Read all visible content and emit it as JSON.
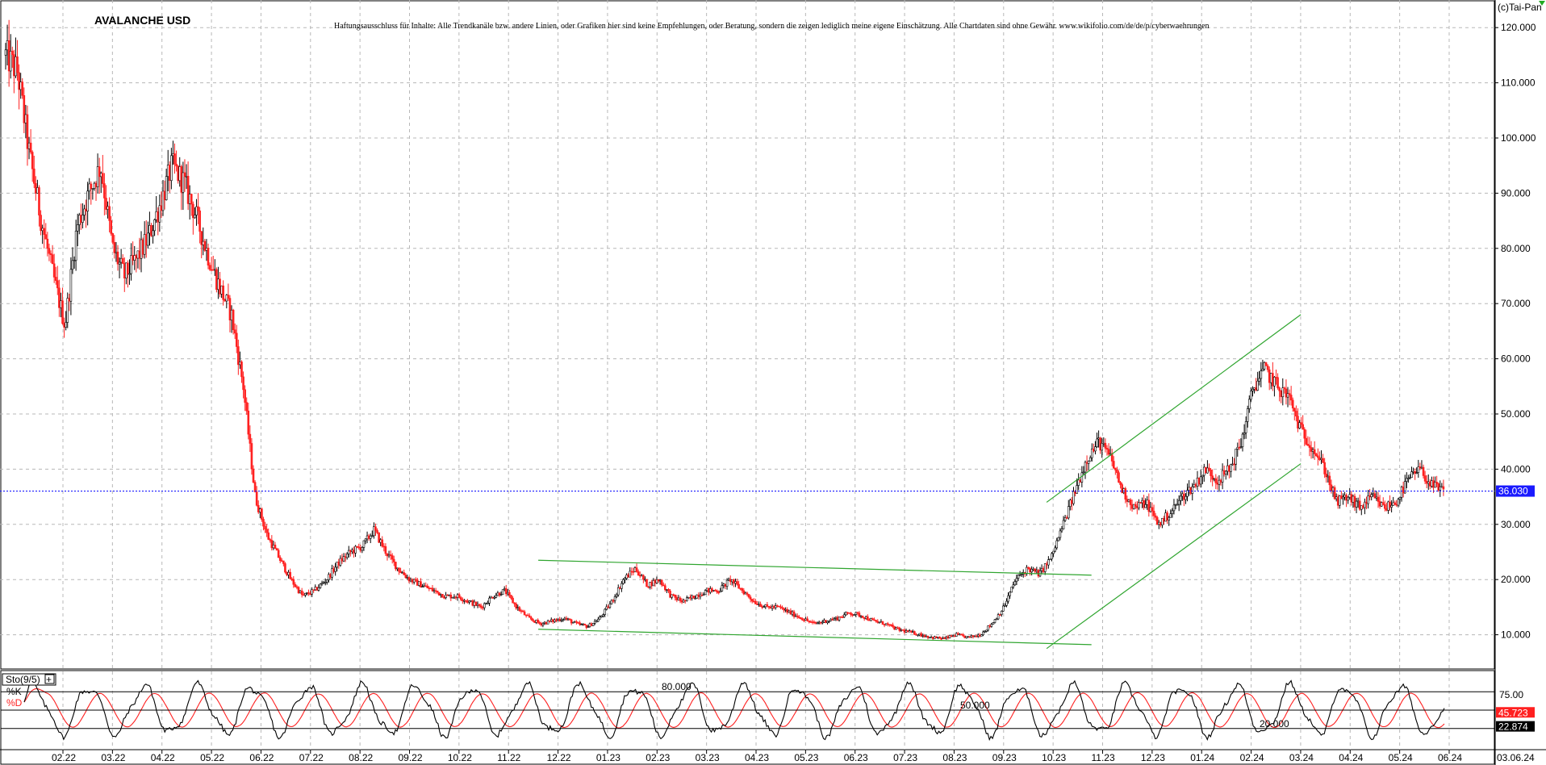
{
  "chart_data": [
    {
      "type": "candlestick",
      "title": "AVALANCHE USD",
      "subtitle": "Haftungsausschluss für Inhalte: Alle Trendkanäle bzw. andere Linien, oder Grafiken hier sind keine Empfehlungen, oder Beratung, sondern die zeigen lediglich meine eigene Einschätzung. Alle Chartdaten sind ohne Gewähr. www.wikifolio.com/de/de/p/cyberwaehrungen",
      "copyright": "(c)Tai-Pan",
      "x_ticks": [
        "02.22",
        "03.22",
        "04.22",
        "05.22",
        "06.22",
        "07.22",
        "08.22",
        "09.22",
        "10.22",
        "11.22",
        "12.22",
        "01.23",
        "02.23",
        "03.23",
        "04.23",
        "05.23",
        "06.23",
        "07.23",
        "08.23",
        "09.23",
        "10.23",
        "11.23",
        "12.23",
        "01.24",
        "02.24",
        "03.24",
        "04.24",
        "05.24",
        "06.24"
      ],
      "x_end_label": "03.06.24",
      "y_ticks": [
        "120.000",
        "110.000",
        "100.000",
        "90.000",
        "80.000",
        "70.000",
        "60.000",
        "50.000",
        "40.000",
        "30.000",
        "20.000",
        "10.000"
      ],
      "ylim": [
        3.8,
        125
      ],
      "last_price": "36.030",
      "last_price_value": 36.03,
      "colors": {
        "up": "#000000",
        "down": "#ff2020",
        "trendline": "#2fa52f",
        "last_price": "#1a1aff"
      },
      "close_path": [
        [
          0,
          115
        ],
        [
          1,
          112
        ],
        [
          2,
          97
        ],
        [
          3,
          85
        ],
        [
          4,
          75
        ],
        [
          5,
          66
        ],
        [
          6,
          84
        ],
        [
          7,
          90
        ],
        [
          8,
          95
        ],
        [
          9,
          80
        ],
        [
          10,
          75
        ],
        [
          11,
          78
        ],
        [
          12,
          82
        ],
        [
          13,
          88
        ],
        [
          14,
          95
        ],
        [
          15,
          92
        ],
        [
          16,
          86
        ],
        [
          17,
          79
        ],
        [
          18,
          73
        ],
        [
          19,
          68
        ],
        [
          20,
          55
        ],
        [
          21,
          35
        ],
        [
          22,
          28
        ],
        [
          23,
          24
        ],
        [
          24,
          20
        ],
        [
          25,
          17
        ],
        [
          26,
          18
        ],
        [
          27,
          20
        ],
        [
          28,
          23
        ],
        [
          29,
          25
        ],
        [
          30,
          26
        ],
        [
          31,
          29
        ],
        [
          32,
          25
        ],
        [
          33,
          22
        ],
        [
          34,
          20
        ],
        [
          35,
          19
        ],
        [
          36,
          18
        ],
        [
          37,
          17
        ],
        [
          38,
          17
        ],
        [
          39,
          16
        ],
        [
          40,
          15
        ],
        [
          41,
          17
        ],
        [
          42,
          18
        ],
        [
          43,
          15
        ],
        [
          44,
          13
        ],
        [
          45,
          12
        ],
        [
          46,
          12.5
        ],
        [
          47,
          13
        ],
        [
          48,
          12
        ],
        [
          49,
          11.5
        ],
        [
          50,
          13
        ],
        [
          51,
          16
        ],
        [
          52,
          20
        ],
        [
          53,
          22
        ],
        [
          54,
          19
        ],
        [
          55,
          20
        ],
        [
          56,
          17
        ],
        [
          57,
          16
        ],
        [
          58,
          17
        ],
        [
          59,
          18
        ],
        [
          60,
          18
        ],
        [
          61,
          20
        ],
        [
          62,
          18
        ],
        [
          63,
          16
        ],
        [
          64,
          15
        ],
        [
          65,
          15
        ],
        [
          66,
          14
        ],
        [
          67,
          13
        ],
        [
          68,
          12
        ],
        [
          69,
          12.5
        ],
        [
          70,
          13
        ],
        [
          71,
          14
        ],
        [
          72,
          13.5
        ],
        [
          73,
          12.5
        ],
        [
          74,
          12
        ],
        [
          75,
          11
        ],
        [
          76,
          10.5
        ],
        [
          77,
          10
        ],
        [
          78,
          9.5
        ],
        [
          79,
          9.3
        ],
        [
          80,
          10
        ],
        [
          81,
          9.5
        ],
        [
          82,
          10
        ],
        [
          83,
          12
        ],
        [
          84,
          15
        ],
        [
          85,
          20
        ],
        [
          86,
          22
        ],
        [
          87,
          21
        ],
        [
          88,
          24
        ],
        [
          89,
          30
        ],
        [
          90,
          36
        ],
        [
          91,
          42
        ],
        [
          92,
          45
        ],
        [
          93,
          42
        ],
        [
          94,
          36
        ],
        [
          95,
          33
        ],
        [
          96,
          34
        ],
        [
          97,
          30
        ],
        [
          98,
          32
        ],
        [
          99,
          35
        ],
        [
          100,
          37
        ],
        [
          101,
          40
        ],
        [
          102,
          38
        ],
        [
          103,
          40
        ],
        [
          104,
          45
        ],
        [
          105,
          55
        ],
        [
          106,
          58
        ],
        [
          107,
          55
        ],
        [
          108,
          53
        ],
        [
          109,
          47
        ],
        [
          110,
          44
        ],
        [
          111,
          40
        ],
        [
          112,
          34
        ],
        [
          113,
          35
        ],
        [
          114,
          33
        ],
        [
          115,
          35
        ],
        [
          116,
          33
        ],
        [
          117,
          34
        ],
        [
          118,
          38
        ],
        [
          119,
          40
        ],
        [
          120,
          37
        ],
        [
          121,
          36
        ]
      ],
      "close_path_x_range": [
        0,
        121
      ],
      "annotations": [
        {
          "name": "Downtrend channel upper",
          "from": [
            0.36,
            23.5
          ],
          "to": [
            0.73,
            20.8
          ]
        },
        {
          "name": "Downtrend channel lower",
          "from": [
            0.36,
            11.0
          ],
          "to": [
            0.73,
            8.2
          ]
        },
        {
          "name": "Uptrend channel upper",
          "from": [
            0.7,
            34
          ],
          "to": [
            0.87,
            68
          ]
        },
        {
          "name": "Uptrend channel lower",
          "from": [
            0.7,
            7.5
          ],
          "to": [
            0.87,
            41
          ]
        }
      ]
    },
    {
      "type": "line",
      "title": "Sto(9/5)",
      "plus_label": "+",
      "legend": [
        {
          "name": "%K",
          "color": "#000000"
        },
        {
          "name": "%D",
          "color": "#ff2020"
        }
      ],
      "ylim": [
        0,
        100
      ],
      "y_ticks": [
        "75.00"
      ],
      "reference_levels": [
        {
          "label": "80.000",
          "value": 80
        },
        {
          "label": "50.000",
          "value": 50
        },
        {
          "label": "20.000",
          "value": 20
        }
      ],
      "last_values": [
        {
          "series": "%D",
          "label": "45.723",
          "value": 45.723
        },
        {
          "series": "%K",
          "label": "22.874",
          "value": 22.874
        }
      ],
      "cycles": 26,
      "phase": 0.4,
      "amplitude": 38
    }
  ]
}
